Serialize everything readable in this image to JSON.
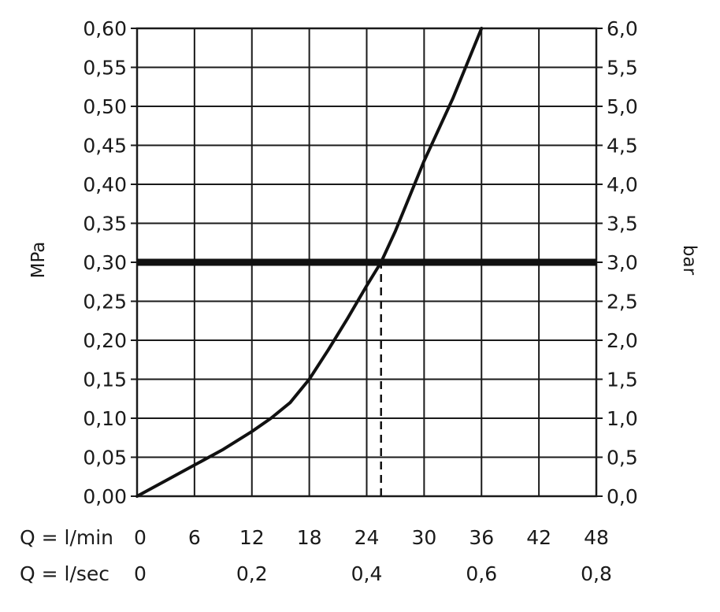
{
  "chart_data": {
    "type": "line",
    "title": "",
    "y_left": {
      "label": "MPa",
      "ticks": [
        "0,00",
        "0,05",
        "0,10",
        "0,15",
        "0,20",
        "0,25",
        "0,30",
        "0,35",
        "0,40",
        "0,45",
        "0,50",
        "0,55",
        "0,60"
      ],
      "ylim": [
        0,
        0.6
      ]
    },
    "y_right": {
      "label": "bar",
      "ticks": [
        "0,0",
        "0,5",
        "1,0",
        "1,5",
        "2,0",
        "2,5",
        "3,0",
        "3,5",
        "4,0",
        "4,5",
        "5,0",
        "5,5",
        "6,0"
      ],
      "ylim": [
        0,
        6
      ]
    },
    "x_rows": [
      {
        "label": "Q = l/min",
        "ticks": [
          "0",
          "6",
          "12",
          "18",
          "24",
          "30",
          "36",
          "42",
          "48"
        ],
        "values": [
          0,
          6,
          12,
          18,
          24,
          30,
          36,
          42,
          48
        ]
      },
      {
        "label": "Q = l/sec",
        "ticks": [
          "0",
          "0,2",
          "0,4",
          "0,6",
          "0,8"
        ],
        "values": [
          0,
          12,
          24,
          36,
          48
        ]
      }
    ],
    "xlim": [
      0,
      48
    ],
    "grid": true,
    "series": [
      {
        "x": [
          0,
          3,
          6,
          9,
          12,
          14,
          16,
          18,
          20,
          22,
          24,
          25.5,
          27,
          30,
          33,
          36
        ],
        "y": [
          0,
          0.02,
          0.04,
          0.06,
          0.083,
          0.1,
          0.12,
          0.15,
          0.188,
          0.228,
          0.27,
          0.3,
          0.34,
          0.43,
          0.51,
          0.6
        ]
      }
    ],
    "reference_line": {
      "y": 0.3
    },
    "marker_line": {
      "x": 25.5,
      "y_from": 0,
      "y_to": 0.3
    }
  }
}
